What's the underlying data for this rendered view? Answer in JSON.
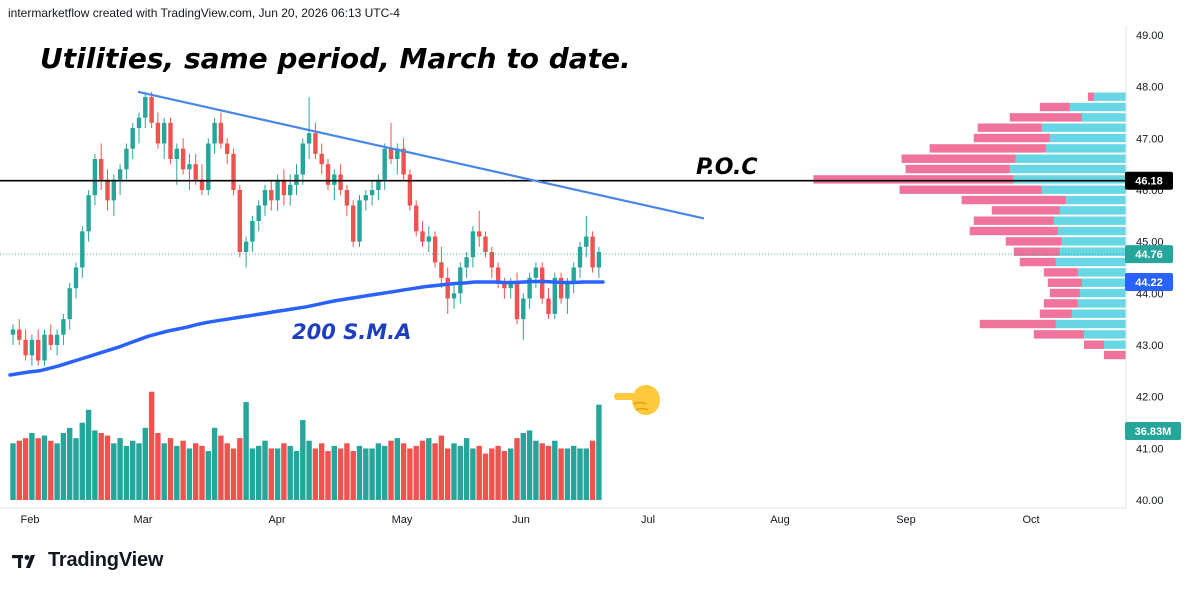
{
  "header": {
    "attribution": "intermarketflow created with TradingView.com, Jun 20, 2026 06:13 UTC-4"
  },
  "brand": {
    "name": "TradingView",
    "logo_icon": "tradingview-logo-icon"
  },
  "colors": {
    "up": "#26a69a",
    "down": "#ef5350",
    "sma": "#2962ff",
    "trendline": "#4a86e8",
    "vp_up": "#4dd0e1",
    "vp_down": "#ec5b8a",
    "poc_line": "#000000"
  },
  "chart_data": {
    "type": "candlestick",
    "title": "Utilities, same period, March to date.",
    "annotations": {
      "poc": "P.O.C",
      "sma": "200 S.M.A",
      "pointer_icon": "hand-pointing-left-icon"
    },
    "price_scale": {
      "min": 40.0,
      "max": 49.0,
      "ticks": [
        "40.00",
        "41.00",
        "42.00",
        "43.00",
        "44.00",
        "45.00",
        "46.00",
        "47.00",
        "48.00",
        "49.00"
      ]
    },
    "x_labels": [
      "Feb",
      "Mar",
      "Apr",
      "May",
      "Jun",
      "Jul",
      "Aug",
      "Sep",
      "Oct"
    ],
    "price_labels": [
      {
        "text": "46.18",
        "price": 46.18,
        "kind": "poc"
      },
      {
        "text": "44.76",
        "price": 44.76,
        "kind": "last"
      },
      {
        "text": "44.22",
        "price": 44.22,
        "kind": "sma"
      }
    ],
    "volume_label": "36.83M",
    "candles": [
      [
        43.2,
        43.4,
        43.0,
        43.3
      ],
      [
        43.3,
        43.5,
        43.0,
        43.1
      ],
      [
        43.1,
        43.3,
        42.7,
        42.8
      ],
      [
        42.8,
        43.2,
        42.6,
        43.1
      ],
      [
        43.1,
        43.3,
        42.6,
        42.7
      ],
      [
        42.7,
        43.3,
        42.6,
        43.2
      ],
      [
        43.2,
        43.4,
        42.9,
        43.0
      ],
      [
        43.0,
        43.3,
        42.8,
        43.2
      ],
      [
        43.2,
        43.6,
        43.0,
        43.5
      ],
      [
        43.5,
        44.2,
        43.3,
        44.1
      ],
      [
        44.1,
        44.6,
        43.9,
        44.5
      ],
      [
        44.5,
        45.3,
        44.3,
        45.2
      ],
      [
        45.2,
        46.0,
        45.0,
        45.9
      ],
      [
        45.9,
        46.7,
        45.7,
        46.6
      ],
      [
        46.6,
        46.9,
        46.0,
        46.2
      ],
      [
        46.2,
        46.4,
        45.6,
        45.8
      ],
      [
        45.8,
        46.3,
        45.5,
        46.2
      ],
      [
        46.2,
        46.5,
        45.9,
        46.4
      ],
      [
        46.4,
        46.9,
        46.2,
        46.8
      ],
      [
        46.8,
        47.3,
        46.6,
        47.2
      ],
      [
        47.2,
        47.5,
        46.9,
        47.4
      ],
      [
        47.4,
        47.9,
        47.2,
        47.8
      ],
      [
        47.8,
        47.9,
        47.2,
        47.3
      ],
      [
        47.3,
        47.5,
        46.8,
        46.9
      ],
      [
        46.9,
        47.4,
        46.6,
        47.3
      ],
      [
        47.3,
        47.4,
        46.5,
        46.6
      ],
      [
        46.6,
        46.9,
        46.1,
        46.8
      ],
      [
        46.8,
        47.0,
        46.3,
        46.4
      ],
      [
        46.4,
        46.7,
        46.0,
        46.5
      ],
      [
        46.5,
        46.7,
        46.1,
        46.2
      ],
      [
        46.2,
        46.5,
        45.9,
        46.0
      ],
      [
        46.0,
        47.0,
        45.9,
        46.9
      ],
      [
        46.9,
        47.4,
        46.7,
        47.3
      ],
      [
        47.3,
        47.5,
        46.8,
        46.9
      ],
      [
        46.9,
        47.0,
        46.5,
        46.7
      ],
      [
        46.7,
        46.8,
        45.9,
        46.0
      ],
      [
        46.0,
        46.1,
        44.7,
        44.8
      ],
      [
        44.8,
        45.1,
        44.5,
        45.0
      ],
      [
        45.0,
        45.5,
        44.8,
        45.4
      ],
      [
        45.4,
        45.8,
        45.2,
        45.7
      ],
      [
        45.7,
        46.1,
        45.5,
        46.0
      ],
      [
        46.0,
        46.2,
        45.6,
        45.8
      ],
      [
        45.8,
        46.3,
        45.6,
        46.2
      ],
      [
        46.2,
        46.4,
        45.7,
        45.9
      ],
      [
        45.9,
        46.3,
        45.7,
        46.1
      ],
      [
        46.1,
        46.5,
        45.9,
        46.3
      ],
      [
        46.3,
        47.0,
        46.1,
        46.9
      ],
      [
        46.9,
        47.8,
        46.6,
        47.1
      ],
      [
        47.1,
        47.3,
        46.6,
        46.7
      ],
      [
        46.7,
        46.9,
        46.3,
        46.5
      ],
      [
        46.5,
        46.6,
        46.0,
        46.1
      ],
      [
        46.1,
        46.4,
        45.8,
        46.3
      ],
      [
        46.3,
        46.5,
        45.9,
        46.0
      ],
      [
        46.0,
        46.1,
        45.5,
        45.7
      ],
      [
        45.7,
        45.8,
        44.9,
        45.0
      ],
      [
        45.0,
        45.9,
        44.9,
        45.8
      ],
      [
        45.8,
        46.0,
        45.6,
        45.9
      ],
      [
        45.9,
        46.2,
        45.7,
        46.0
      ],
      [
        46.0,
        46.3,
        45.8,
        46.2
      ],
      [
        46.2,
        46.9,
        46.0,
        46.8
      ],
      [
        46.8,
        47.3,
        46.5,
        46.6
      ],
      [
        46.6,
        46.9,
        46.3,
        46.8
      ],
      [
        46.8,
        47.0,
        46.2,
        46.3
      ],
      [
        46.3,
        46.4,
        45.6,
        45.7
      ],
      [
        45.7,
        45.8,
        45.1,
        45.2
      ],
      [
        45.2,
        45.4,
        44.9,
        45.0
      ],
      [
        45.0,
        45.3,
        44.8,
        45.1
      ],
      [
        45.1,
        45.2,
        44.5,
        44.6
      ],
      [
        44.6,
        44.9,
        44.1,
        44.3
      ],
      [
        44.3,
        44.5,
        43.6,
        43.9
      ],
      [
        43.9,
        44.2,
        43.7,
        44.0
      ],
      [
        44.0,
        44.6,
        43.8,
        44.5
      ],
      [
        44.5,
        44.8,
        44.3,
        44.7
      ],
      [
        44.7,
        45.3,
        44.5,
        45.2
      ],
      [
        45.2,
        45.6,
        44.9,
        45.1
      ],
      [
        45.1,
        45.2,
        44.7,
        44.8
      ],
      [
        44.8,
        44.9,
        44.3,
        44.5
      ],
      [
        44.5,
        44.6,
        44.1,
        44.2
      ],
      [
        44.2,
        44.3,
        43.9,
        44.1
      ],
      [
        44.1,
        44.3,
        43.9,
        44.2
      ],
      [
        44.2,
        44.4,
        43.4,
        43.5
      ],
      [
        43.5,
        44.0,
        43.1,
        43.9
      ],
      [
        43.9,
        44.4,
        43.7,
        44.3
      ],
      [
        44.3,
        44.6,
        44.1,
        44.5
      ],
      [
        44.5,
        44.6,
        43.8,
        43.9
      ],
      [
        43.9,
        44.1,
        43.5,
        43.6
      ],
      [
        43.6,
        44.4,
        43.5,
        44.3
      ],
      [
        44.3,
        44.4,
        43.8,
        43.9
      ],
      [
        43.9,
        44.3,
        43.6,
        44.2
      ],
      [
        44.2,
        44.6,
        44.0,
        44.5
      ],
      [
        44.5,
        45.0,
        44.3,
        44.9
      ],
      [
        44.9,
        45.5,
        44.7,
        45.1
      ],
      [
        45.1,
        45.2,
        44.4,
        44.5
      ],
      [
        44.5,
        44.9,
        44.3,
        44.8
      ]
    ],
    "sma_200": [
      42.42,
      42.45,
      42.48,
      42.5,
      42.55,
      42.6,
      42.66,
      42.72,
      42.78,
      42.84,
      42.9,
      42.96,
      43.03,
      43.1,
      43.17,
      43.22,
      43.27,
      43.31,
      43.35,
      43.4,
      43.44,
      43.47,
      43.5,
      43.53,
      43.56,
      43.59,
      43.62,
      43.65,
      43.68,
      43.71,
      43.74,
      43.78,
      43.82,
      43.86,
      43.89,
      43.92,
      43.95,
      43.98,
      44.01,
      44.04,
      44.07,
      44.1,
      44.13,
      44.15,
      44.17,
      44.19,
      44.2,
      44.22,
      44.22,
      44.22,
      44.21,
      44.21,
      44.22,
      44.23,
      44.23,
      44.22,
      44.21,
      44.21,
      44.22,
      44.22,
      44.22
    ],
    "volume_max_millions": 45,
    "volume": [
      22,
      23,
      24,
      26,
      24,
      25,
      23,
      22,
      26,
      28,
      24,
      30,
      35,
      27,
      26,
      25,
      22,
      24,
      21,
      23,
      22,
      28,
      42,
      26,
      22,
      24,
      21,
      23,
      20,
      22,
      21,
      19,
      28,
      25,
      22,
      20,
      24,
      38,
      20,
      21,
      23,
      20,
      20,
      22,
      21,
      19,
      31,
      23,
      20,
      22,
      19,
      21,
      20,
      22,
      19,
      21,
      20,
      20,
      22,
      21,
      23,
      24,
      22,
      20,
      21,
      23,
      24,
      22,
      25,
      20,
      22,
      21,
      24,
      20,
      21,
      18,
      20,
      21,
      19,
      20,
      24,
      26,
      27,
      23,
      22,
      21,
      23,
      20,
      20,
      21,
      20,
      20,
      23,
      37
    ],
    "volume_profile": [
      {
        "price": 47.8,
        "up": 0.16,
        "down": 0.03
      },
      {
        "price": 47.6,
        "up": 0.28,
        "down": 0.15
      },
      {
        "price": 47.4,
        "up": 0.22,
        "down": 0.36
      },
      {
        "price": 47.2,
        "up": 0.42,
        "down": 0.32
      },
      {
        "price": 47.0,
        "up": 0.38,
        "down": 0.38
      },
      {
        "price": 46.8,
        "up": 0.4,
        "down": 0.58
      },
      {
        "price": 46.6,
        "up": 0.55,
        "down": 0.57
      },
      {
        "price": 46.4,
        "up": 0.58,
        "down": 0.52
      },
      {
        "price": 46.2,
        "up": 0.56,
        "down": 1.0
      },
      {
        "price": 46.0,
        "up": 0.42,
        "down": 0.71
      },
      {
        "price": 45.8,
        "up": 0.3,
        "down": 0.52
      },
      {
        "price": 45.6,
        "up": 0.33,
        "down": 0.34
      },
      {
        "price": 45.4,
        "up": 0.36,
        "down": 0.4
      },
      {
        "price": 45.2,
        "up": 0.34,
        "down": 0.44
      },
      {
        "price": 45.0,
        "up": 0.32,
        "down": 0.28
      },
      {
        "price": 44.8,
        "up": 0.33,
        "down": 0.23
      },
      {
        "price": 44.6,
        "up": 0.35,
        "down": 0.18
      },
      {
        "price": 44.4,
        "up": 0.24,
        "down": 0.17
      },
      {
        "price": 44.2,
        "up": 0.22,
        "down": 0.17
      },
      {
        "price": 44.0,
        "up": 0.23,
        "down": 0.15
      },
      {
        "price": 43.8,
        "up": 0.24,
        "down": 0.17
      },
      {
        "price": 43.6,
        "up": 0.27,
        "down": 0.16
      },
      {
        "price": 43.4,
        "up": 0.35,
        "down": 0.38
      },
      {
        "price": 43.2,
        "up": 0.21,
        "down": 0.25
      },
      {
        "price": 43.0,
        "up": 0.11,
        "down": 0.1
      },
      {
        "price": 42.8,
        "up": 0.0,
        "down": 0.11
      }
    ]
  }
}
